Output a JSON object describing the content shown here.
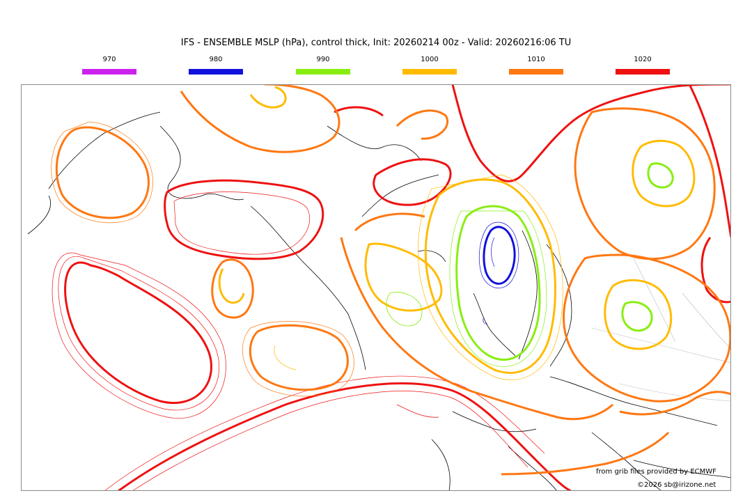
{
  "title": "IFS - ENSEMBLE MSLP (hPa), control thick, Init: 20260214 00z - Valid: 20260216:06 TU",
  "legend": [
    {
      "label": "970",
      "color": "#cc22ee"
    },
    {
      "label": "980",
      "color": "#1111dd"
    },
    {
      "label": "990",
      "color": "#88ee11"
    },
    {
      "label": "1000",
      "color": "#ffbb00"
    },
    {
      "label": "1010",
      "color": "#ff7711"
    },
    {
      "label": "1020",
      "color": "#ee1111"
    }
  ],
  "credits": {
    "source": "from grib files provided by ECMWF",
    "copyright": "©2026 sb@irizone.net"
  }
}
